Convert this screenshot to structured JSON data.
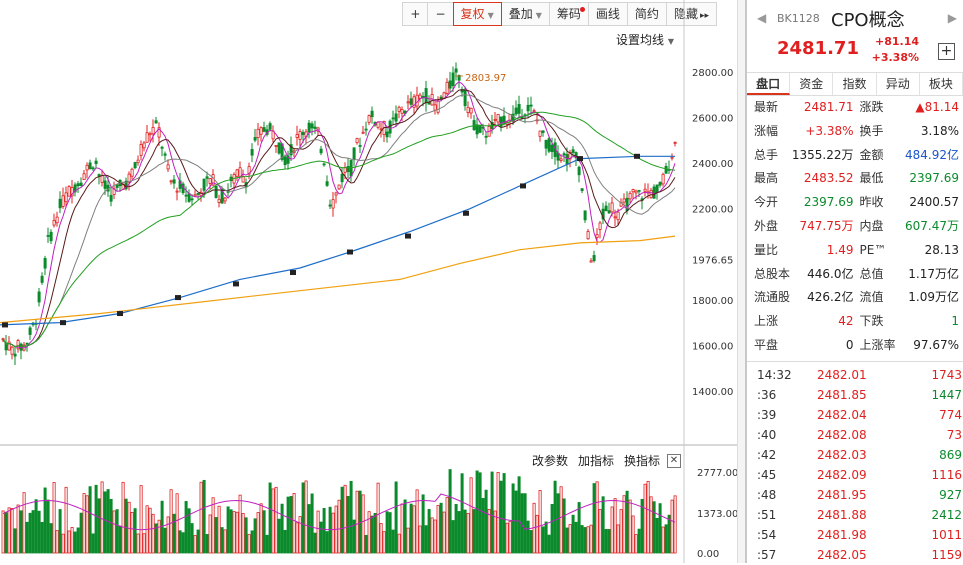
{
  "toolbar": {
    "plus": "+",
    "minus": "−",
    "fuquan": "复权",
    "diejia": "叠加",
    "chouma": "筹码",
    "huaxian": "画线",
    "jianyue": "简约",
    "yincang": "隐藏",
    "more": "▸▸"
  },
  "set_ma": "设置均线",
  "max_label": "2803.97",
  "price_axis": [
    "2800.00",
    "2600.00",
    "2400.00",
    "2200.00",
    "1976.65",
    "1800.00",
    "1600.00",
    "1400.00"
  ],
  "vol_axis": [
    "2777.00",
    "1373.00",
    "0.00"
  ],
  "indicator_bar": {
    "params": "改参数",
    "add": "加指标",
    "swap": "换指标",
    "close": "✕"
  },
  "header": {
    "prev": "◀",
    "next": "▶",
    "code": "BK1128",
    "name": "CPO概念",
    "price": "2481.71",
    "change": "+81.14",
    "change_pct": "+3.38%",
    "add": "+"
  },
  "tabs": [
    "盘口",
    "资金",
    "指数",
    "异动",
    "板块"
  ],
  "stats": [
    [
      {
        "l": "最新",
        "v": "2481.71",
        "c": "red"
      },
      {
        "l": "涨跌",
        "v": "▲81.14",
        "c": "red"
      }
    ],
    [
      {
        "l": "涨幅",
        "v": "+3.38%",
        "c": "red"
      },
      {
        "l": "换手",
        "v": "3.18%",
        "c": "blk"
      }
    ],
    [
      {
        "l": "总手",
        "v": "1355.22万",
        "c": "blk"
      },
      {
        "l": "金额",
        "v": "484.92亿",
        "c": "blue"
      }
    ],
    [
      {
        "l": "最高",
        "v": "2483.52",
        "c": "red"
      },
      {
        "l": "最低",
        "v": "2397.69",
        "c": "green"
      }
    ],
    [
      {
        "l": "今开",
        "v": "2397.69",
        "c": "green"
      },
      {
        "l": "昨收",
        "v": "2400.57",
        "c": "blk"
      }
    ],
    [
      {
        "l": "外盘",
        "v": "747.75万",
        "c": "red"
      },
      {
        "l": "内盘",
        "v": "607.47万",
        "c": "green"
      }
    ],
    [
      {
        "l": "量比",
        "v": "1.49",
        "c": "red"
      },
      {
        "l": "PE™",
        "v": "28.13",
        "c": "blk"
      }
    ],
    [
      {
        "l": "总股本",
        "v": "446.0亿",
        "c": "blk"
      },
      {
        "l": "总值",
        "v": "1.17万亿",
        "c": "blk"
      }
    ],
    [
      {
        "l": "流通股",
        "v": "426.2亿",
        "c": "blk"
      },
      {
        "l": "流值",
        "v": "1.09万亿",
        "c": "blk"
      }
    ],
    [
      {
        "l": "上涨",
        "v": "42",
        "c": "red"
      },
      {
        "l": "下跌",
        "v": "1",
        "c": "green"
      }
    ],
    [
      {
        "l": "平盘",
        "v": "0",
        "c": "blk"
      },
      {
        "l": "上涨率",
        "v": "97.67%",
        "c": "blk"
      }
    ]
  ],
  "ticks": [
    {
      "t": "14:32",
      "p": "2482.01",
      "v": "1743",
      "c": "red"
    },
    {
      "t": ":36",
      "p": "2481.85",
      "v": "1447",
      "c": "green"
    },
    {
      "t": ":39",
      "p": "2482.04",
      "v": "774",
      "c": "red"
    },
    {
      "t": ":40",
      "p": "2482.08",
      "v": "73",
      "c": "red"
    },
    {
      "t": ":42",
      "p": "2482.03",
      "v": "869",
      "c": "green"
    },
    {
      "t": ":45",
      "p": "2482.09",
      "v": "1116",
      "c": "red"
    },
    {
      "t": ":48",
      "p": "2481.95",
      "v": "927",
      "c": "green"
    },
    {
      "t": ":51",
      "p": "2481.88",
      "v": "2412",
      "c": "green"
    },
    {
      "t": ":54",
      "p": "2481.98",
      "v": "1011",
      "c": "red"
    },
    {
      "t": ":57",
      "p": "2482.05",
      "v": "1159",
      "c": "red"
    }
  ],
  "chart_data": {
    "type": "candlestick",
    "price_ylim": [
      1400,
      2800
    ],
    "volume_ylim": [
      0,
      2777
    ],
    "max_marker": 2803.97,
    "price_ticks": [
      2800,
      2600,
      2400,
      2200,
      1976.65,
      1800,
      1600,
      1400
    ],
    "volume_ticks": [
      2777,
      1373,
      0
    ],
    "series_colors": {
      "up": "#e02020",
      "down": "#0b8a2b",
      "ma5": "#c020c0",
      "ma10": "#5a1a1a",
      "ma20": "#808080",
      "ma60": "#22a022",
      "ma120": "#1e6ec8",
      "ma250": "#f0a010"
    }
  }
}
